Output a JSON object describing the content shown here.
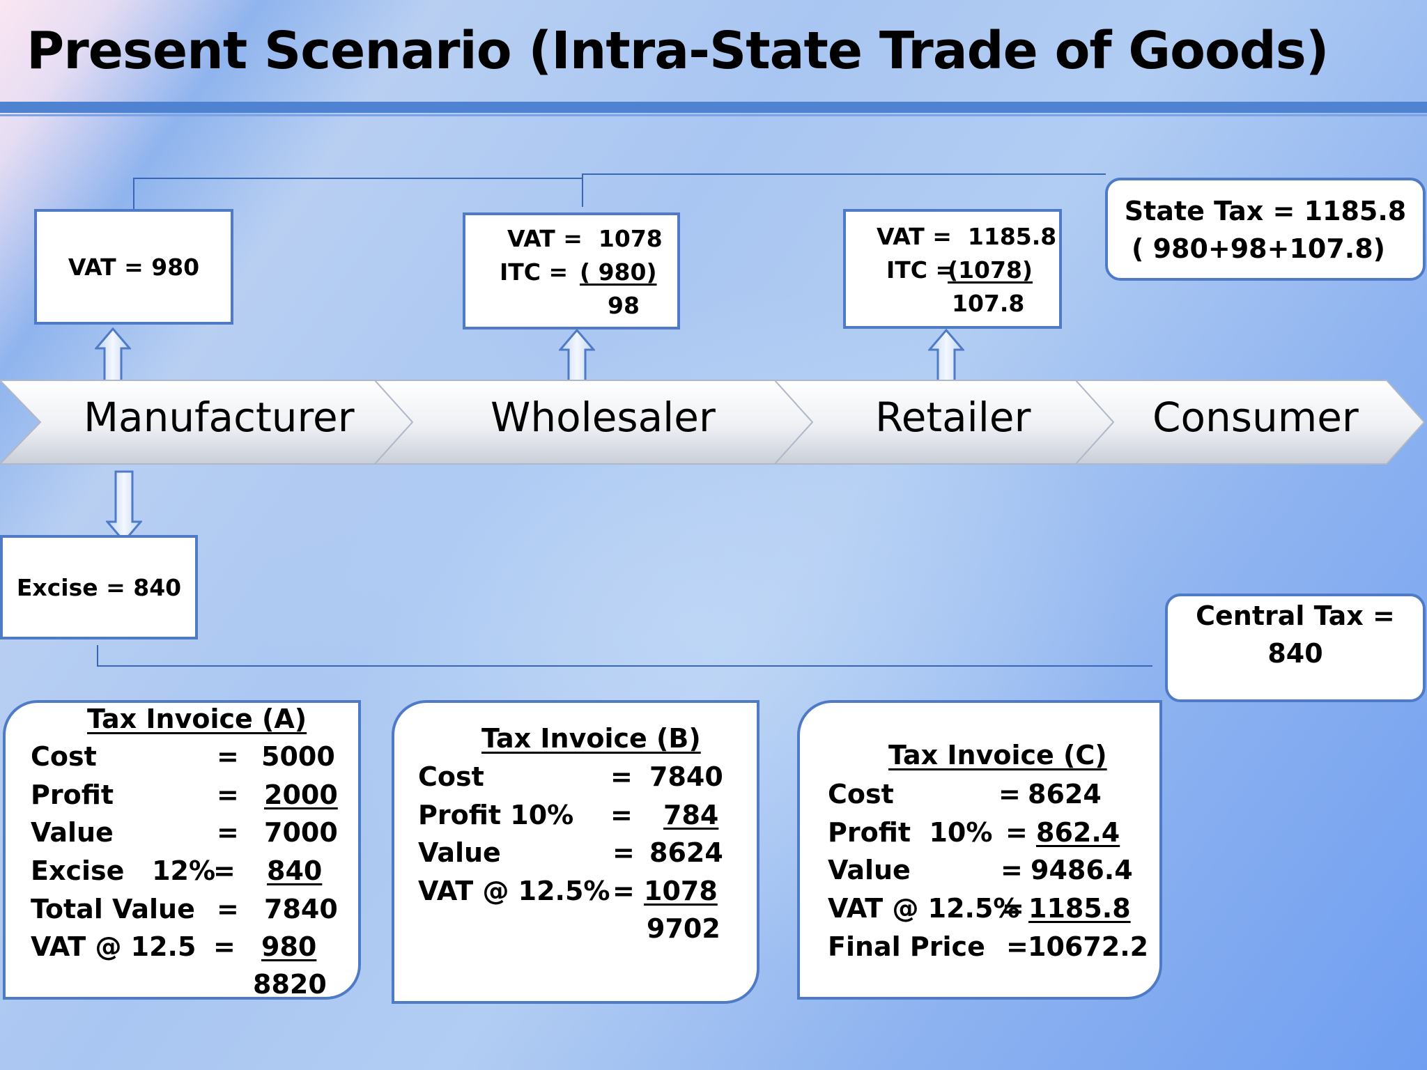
{
  "title": "Present Scenario (Intra-State Trade of Goods)",
  "stages": [
    "Manufacturer",
    "Wholesaler",
    "Retailer",
    "Consumer"
  ],
  "manufacturer_vat_box": {
    "line1": "VAT =  980"
  },
  "wholesaler_vat_box": {
    "vat": "VAT =  1078",
    "itc_label": "ITC =",
    "itc_value": "( 980)",
    "net": "98"
  },
  "retailer_vat_box": {
    "vat": "VAT =  1185.8",
    "itc_label": "ITC =",
    "itc_value": "(1078)",
    "net": "107.8"
  },
  "state_tax_box": {
    "line1": "State Tax =  1185.8",
    "line2": "( 980+98+107.8)"
  },
  "excise_box": {
    "line1": "Excise =  840"
  },
  "central_tax_box": {
    "line1": "Central Tax =",
    "line2": "840"
  },
  "invoice_a": {
    "title": "Tax Invoice (A)",
    "rows": [
      {
        "label": "Cost",
        "eq": "=",
        "value": "5000"
      },
      {
        "label": "Profit",
        "eq": "=",
        "value": "2000"
      },
      {
        "label": "Value",
        "eq": "=",
        "value": "7000"
      },
      {
        "label": "Excise   12%",
        "eq": "=",
        "value": "840"
      },
      {
        "label": "Total Value",
        "eq": "=",
        "value": "7840"
      },
      {
        "label": "VAT @ 12.5",
        "eq": "=",
        "value": "980"
      }
    ],
    "total": "8820"
  },
  "invoice_b": {
    "title": "Tax Invoice (B)",
    "rows": [
      {
        "label": "Cost",
        "eq": "=",
        "value": "7840"
      },
      {
        "label": "Profit 10%",
        "eq": "=",
        "value": "784"
      },
      {
        "label": "Value",
        "eq": "=",
        "value": "8624"
      },
      {
        "label": "VAT @ 12.5%",
        "eq": "=",
        "value": "1078"
      }
    ],
    "total": "9702"
  },
  "invoice_c": {
    "title": "Tax Invoice (C)",
    "rows": [
      {
        "label": "Cost",
        "eq": "=",
        "value": "8624"
      },
      {
        "label": "Profit  10%",
        "eq": "=",
        "value": "862.4"
      },
      {
        "label": "Value",
        "eq": "=",
        "value": "9486.4"
      },
      {
        "label": "VAT @ 12.5%",
        "eq": "=",
        "value": "1185.8"
      },
      {
        "label": "Final Price",
        "eq": "=",
        "value": "10672.2"
      }
    ]
  }
}
